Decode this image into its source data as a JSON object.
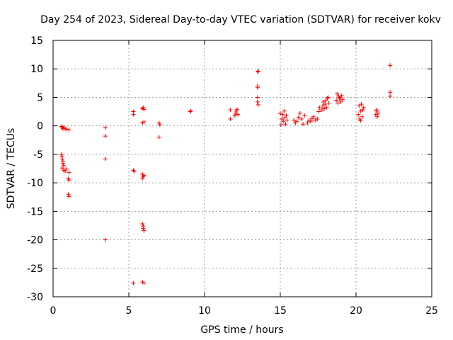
{
  "chart_data": {
    "type": "scatter",
    "title": "Day 254 of 2023, Sidereal Day-to-day VTEC variation (SDTVAR) for receiver kokv",
    "xlabel": "GPS time / hours",
    "ylabel": "SDTVAR / TECUs",
    "xlim": [
      0,
      25
    ],
    "ylim": [
      -30,
      15
    ],
    "xticks": [
      0,
      5,
      10,
      15,
      20,
      25
    ],
    "yticks": [
      15,
      10,
      5,
      0,
      -5,
      -10,
      -15,
      -20,
      -25,
      -30
    ],
    "xtick_labels": [
      "0",
      "5",
      "10",
      "15",
      "20",
      "25"
    ],
    "ytick_labels": [
      "15",
      "10",
      "5",
      "0",
      "-5",
      "-10",
      "-15",
      "-20",
      "-25",
      "-30"
    ],
    "grid": true,
    "marker": "plus",
    "color": "#ff0000",
    "series": [
      {
        "name": "SDTVAR",
        "points": [
          [
            0.55,
            -0.1
          ],
          [
            0.6,
            -0.3
          ],
          [
            0.65,
            -0.5
          ],
          [
            0.7,
            -0.2
          ],
          [
            0.8,
            -0.5
          ],
          [
            0.9,
            -0.6
          ],
          [
            1.05,
            -0.7
          ],
          [
            0.55,
            -5.0
          ],
          [
            0.6,
            -5.4
          ],
          [
            0.6,
            -5.8
          ],
          [
            0.65,
            -6.2
          ],
          [
            0.65,
            -6.6
          ],
          [
            0.7,
            -7.0
          ],
          [
            0.6,
            -7.4
          ],
          [
            0.7,
            -7.8
          ],
          [
            0.8,
            -7.9
          ],
          [
            0.9,
            -7.6
          ],
          [
            1.05,
            -8.2
          ],
          [
            1.0,
            -9.3
          ],
          [
            1.05,
            -9.5
          ],
          [
            1.0,
            -12.0
          ],
          [
            1.05,
            -12.4
          ],
          [
            3.45,
            -0.3
          ],
          [
            3.45,
            -1.8
          ],
          [
            3.45,
            -5.8
          ],
          [
            3.45,
            -20.0
          ],
          [
            5.3,
            2.0
          ],
          [
            5.3,
            2.5
          ],
          [
            5.3,
            -7.8
          ],
          [
            5.35,
            -8.0
          ],
          [
            5.3,
            -27.6
          ],
          [
            5.9,
            3.0
          ],
          [
            5.95,
            3.2
          ],
          [
            6.0,
            2.9
          ],
          [
            5.9,
            0.5
          ],
          [
            6.0,
            0.7
          ],
          [
            5.9,
            -8.5
          ],
          [
            5.95,
            -8.9
          ],
          [
            5.9,
            -9.2
          ],
          [
            6.0,
            -8.7
          ],
          [
            5.9,
            -17.2
          ],
          [
            5.95,
            -17.6
          ],
          [
            5.95,
            -18.0
          ],
          [
            6.0,
            -18.4
          ],
          [
            5.9,
            -27.4
          ],
          [
            6.0,
            -27.6
          ],
          [
            7.0,
            0.5
          ],
          [
            7.05,
            0.2
          ],
          [
            7.0,
            -2.0
          ],
          [
            9.05,
            2.5
          ],
          [
            9.1,
            2.6
          ],
          [
            11.7,
            2.8
          ],
          [
            11.7,
            1.2
          ],
          [
            12.0,
            1.8
          ],
          [
            12.05,
            2.2
          ],
          [
            12.1,
            2.6
          ],
          [
            12.15,
            2.9
          ],
          [
            12.2,
            2.0
          ],
          [
            13.5,
            9.5
          ],
          [
            13.55,
            9.6
          ],
          [
            13.5,
            7.0
          ],
          [
            13.5,
            6.7
          ],
          [
            13.5,
            5.0
          ],
          [
            13.5,
            4.2
          ],
          [
            13.55,
            3.7
          ],
          [
            15.0,
            2.2
          ],
          [
            15.05,
            0.2
          ],
          [
            15.1,
            1.2
          ],
          [
            15.15,
            2.0
          ],
          [
            15.2,
            0.8
          ],
          [
            15.25,
            2.6
          ],
          [
            15.3,
            1.5
          ],
          [
            15.35,
            0.3
          ],
          [
            15.4,
            1.8
          ],
          [
            15.45,
            1.0
          ],
          [
            15.9,
            1.0
          ],
          [
            16.0,
            0.5
          ],
          [
            16.1,
            0.8
          ],
          [
            16.2,
            1.5
          ],
          [
            16.3,
            2.2
          ],
          [
            16.4,
            1.2
          ],
          [
            16.5,
            0.3
          ],
          [
            16.6,
            1.8
          ],
          [
            16.8,
            0.5
          ],
          [
            16.9,
            1.0
          ],
          [
            17.0,
            0.8
          ],
          [
            17.1,
            1.3
          ],
          [
            17.2,
            1.6
          ],
          [
            17.3,
            1.0
          ],
          [
            17.45,
            1.2
          ],
          [
            17.55,
            2.5
          ],
          [
            17.6,
            3.2
          ],
          [
            17.75,
            2.8
          ],
          [
            17.8,
            3.5
          ],
          [
            17.85,
            4.2
          ],
          [
            17.9,
            3.0
          ],
          [
            17.95,
            3.8
          ],
          [
            18.0,
            4.5
          ],
          [
            18.05,
            3.2
          ],
          [
            18.1,
            4.8
          ],
          [
            18.15,
            5.0
          ],
          [
            18.2,
            4.0
          ],
          [
            18.7,
            4.5
          ],
          [
            18.75,
            5.6
          ],
          [
            18.8,
            4.0
          ],
          [
            18.85,
            5.2
          ],
          [
            18.9,
            4.8
          ],
          [
            18.95,
            5.0
          ],
          [
            19.0,
            4.2
          ],
          [
            19.05,
            5.3
          ],
          [
            19.1,
            4.6
          ],
          [
            20.15,
            2.0
          ],
          [
            20.2,
            3.5
          ],
          [
            20.25,
            1.2
          ],
          [
            20.3,
            2.6
          ],
          [
            20.35,
            3.8
          ],
          [
            20.4,
            1.6
          ],
          [
            20.45,
            2.8
          ],
          [
            20.5,
            3.2
          ],
          [
            20.3,
            0.9
          ],
          [
            21.3,
            2.0
          ],
          [
            21.35,
            2.6
          ],
          [
            21.4,
            1.6
          ],
          [
            21.45,
            2.2
          ],
          [
            21.35,
            2.8
          ],
          [
            22.25,
            10.6
          ],
          [
            22.25,
            5.9
          ],
          [
            22.25,
            5.2
          ]
        ]
      }
    ]
  }
}
